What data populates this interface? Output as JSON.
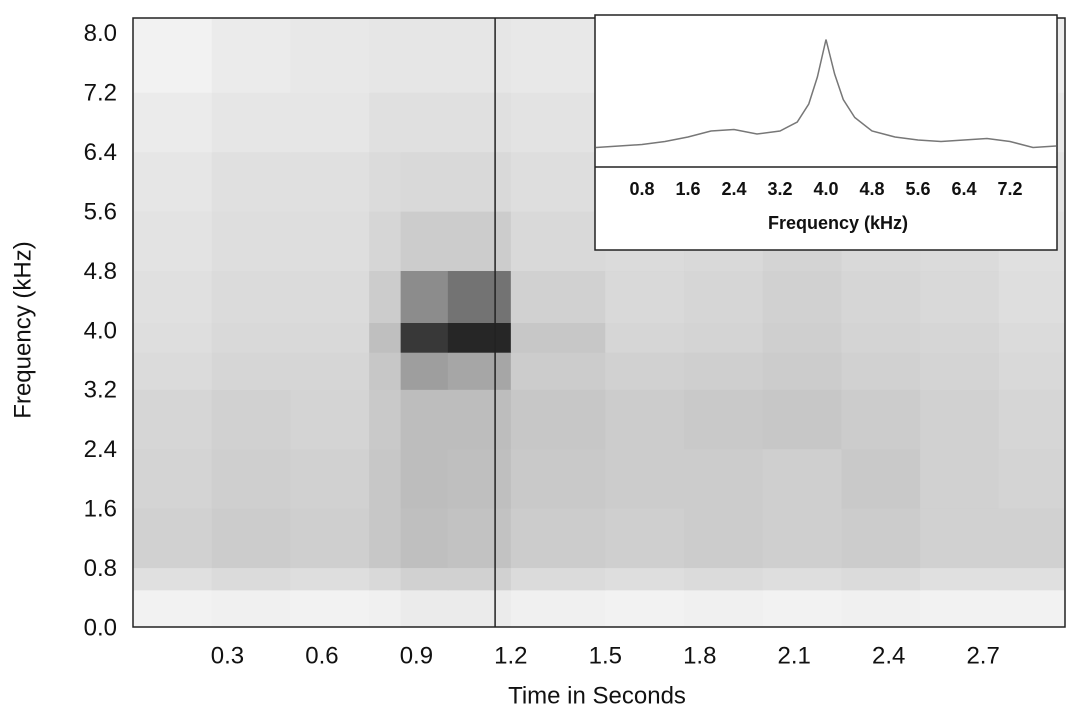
{
  "chart_data": [
    {
      "type": "heatmap",
      "xlabel": "Time in Seconds",
      "ylabel": "Frequency (kHz)",
      "xlim": [
        0,
        2.96
      ],
      "ylim": [
        0,
        8.2
      ],
      "xticks": [
        0.3,
        0.6,
        0.9,
        1.2,
        1.5,
        1.8,
        2.1,
        2.4,
        2.7
      ],
      "yticks": [
        {
          "value": 0,
          "label": "0.0"
        },
        0.8,
        1.6,
        2.4,
        3.2,
        {
          "value": 4,
          "label": "4.0"
        },
        4.8,
        5.6,
        6.4,
        7.2,
        {
          "value": 8,
          "label": "8.0"
        }
      ],
      "x_edges": [
        0,
        0.25,
        0.5,
        0.75,
        0.85,
        1.0,
        1.2,
        1.5,
        1.75,
        2.0,
        2.25,
        2.5,
        2.75,
        2.96
      ],
      "y_edges": [
        0,
        0.5,
        0.8,
        1.6,
        2.4,
        3.2,
        3.7,
        4.1,
        4.8,
        5.6,
        6.4,
        7.2,
        8.2
      ],
      "z": [
        [
          0.05,
          0.06,
          0.05,
          0.06,
          0.08,
          0.08,
          0.06,
          0.05,
          0.06,
          0.05,
          0.06,
          0.05,
          0.05
        ],
        [
          0.12,
          0.14,
          0.13,
          0.15,
          0.18,
          0.18,
          0.14,
          0.13,
          0.14,
          0.13,
          0.14,
          0.12,
          0.12
        ],
        [
          0.18,
          0.2,
          0.19,
          0.22,
          0.25,
          0.24,
          0.2,
          0.19,
          0.2,
          0.19,
          0.2,
          0.18,
          0.18
        ],
        [
          0.17,
          0.19,
          0.18,
          0.22,
          0.26,
          0.25,
          0.21,
          0.2,
          0.2,
          0.19,
          0.21,
          0.18,
          0.17
        ],
        [
          0.16,
          0.18,
          0.17,
          0.21,
          0.26,
          0.26,
          0.22,
          0.2,
          0.21,
          0.22,
          0.2,
          0.18,
          0.16
        ],
        [
          0.14,
          0.16,
          0.16,
          0.22,
          0.38,
          0.35,
          0.2,
          0.18,
          0.19,
          0.2,
          0.18,
          0.17,
          0.15
        ],
        [
          0.13,
          0.15,
          0.15,
          0.25,
          0.78,
          0.85,
          0.22,
          0.16,
          0.17,
          0.19,
          0.17,
          0.16,
          0.14
        ],
        [
          0.12,
          0.14,
          0.14,
          0.2,
          0.45,
          0.55,
          0.18,
          0.15,
          0.16,
          0.18,
          0.16,
          0.15,
          0.13
        ],
        [
          0.11,
          0.13,
          0.13,
          0.16,
          0.2,
          0.2,
          0.15,
          0.14,
          0.15,
          0.17,
          0.15,
          0.14,
          0.12
        ],
        [
          0.1,
          0.12,
          0.12,
          0.14,
          0.15,
          0.15,
          0.13,
          0.13,
          0.14,
          0.15,
          0.14,
          0.13,
          0.11
        ],
        [
          0.08,
          0.1,
          0.1,
          0.12,
          0.12,
          0.12,
          0.11,
          0.11,
          0.12,
          0.12,
          0.12,
          0.11,
          0.09
        ],
        [
          0.05,
          0.08,
          0.09,
          0.1,
          0.1,
          0.1,
          0.09,
          0.09,
          0.1,
          0.1,
          0.1,
          0.09,
          0.07
        ]
      ],
      "cursor_x": 1.15
    },
    {
      "type": "line",
      "xlabel": "Frequency (kHz)",
      "color": "#777777",
      "xlim": [
        0,
        8.0
      ],
      "ylim": [
        0,
        1
      ],
      "xticks": [
        0.8,
        1.6,
        2.4,
        3.2,
        {
          "value": 4,
          "label": "4.0"
        },
        4.8,
        5.6,
        6.4,
        7.2
      ],
      "x": [
        0,
        0.4,
        0.8,
        1.2,
        1.6,
        2.0,
        2.4,
        2.8,
        3.2,
        3.5,
        3.7,
        3.85,
        4.0,
        4.15,
        4.3,
        4.5,
        4.8,
        5.2,
        5.6,
        6.0,
        6.4,
        6.8,
        7.2,
        7.6,
        8.0
      ],
      "values": [
        0.13,
        0.14,
        0.15,
        0.17,
        0.2,
        0.24,
        0.25,
        0.22,
        0.24,
        0.3,
        0.42,
        0.6,
        0.85,
        0.62,
        0.45,
        0.33,
        0.24,
        0.2,
        0.18,
        0.17,
        0.18,
        0.19,
        0.17,
        0.13,
        0.14
      ]
    }
  ]
}
